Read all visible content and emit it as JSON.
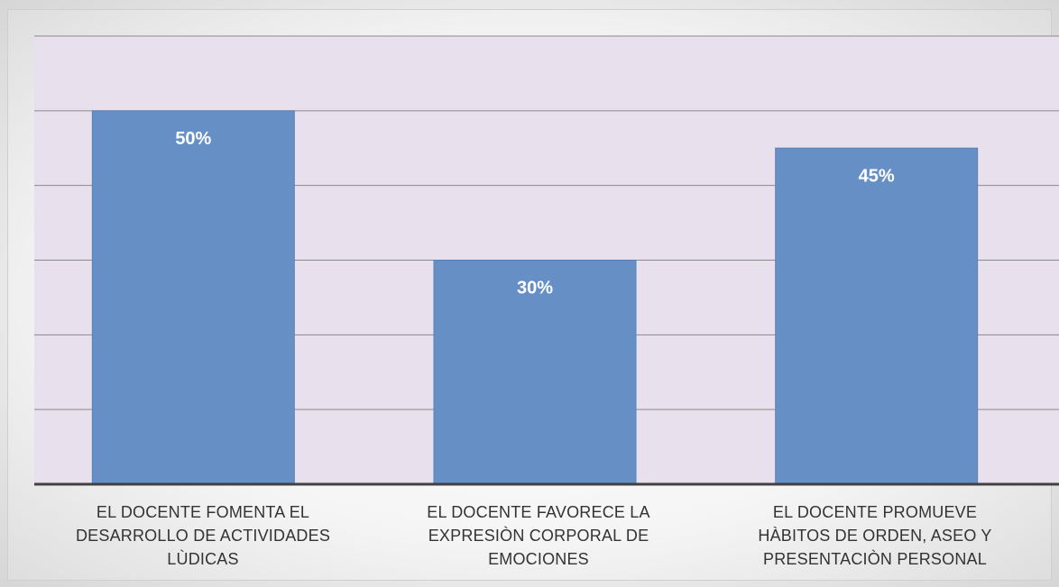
{
  "chart_data": {
    "type": "bar",
    "categories": [
      "EL DOCENTE FOMENTA EL DESARROLLO DE ACTIVIDADES LÙDICAS",
      "EL DOCENTE FAVORECE LA EXPRESIÒN CORPORAL DE EMOCIONES",
      "EL DOCENTE PROMUEVE HÀBITOS DE ORDEN, ASEO Y PRESENTACIÒN PERSONAL"
    ],
    "values": [
      50,
      30,
      45
    ],
    "data_labels": [
      "50%",
      "30%",
      "45%"
    ],
    "title": "",
    "xlabel": "",
    "ylabel": "",
    "ylim": [
      0,
      60
    ],
    "grid": true,
    "legend": "none",
    "colors": {
      "bar": "#6690c5",
      "bar_border": "#5a82b8",
      "plot_bg": "#e8e0ec",
      "grid": "#8a8a8a",
      "axis": "#404040",
      "data_label": "#ffffff"
    }
  }
}
